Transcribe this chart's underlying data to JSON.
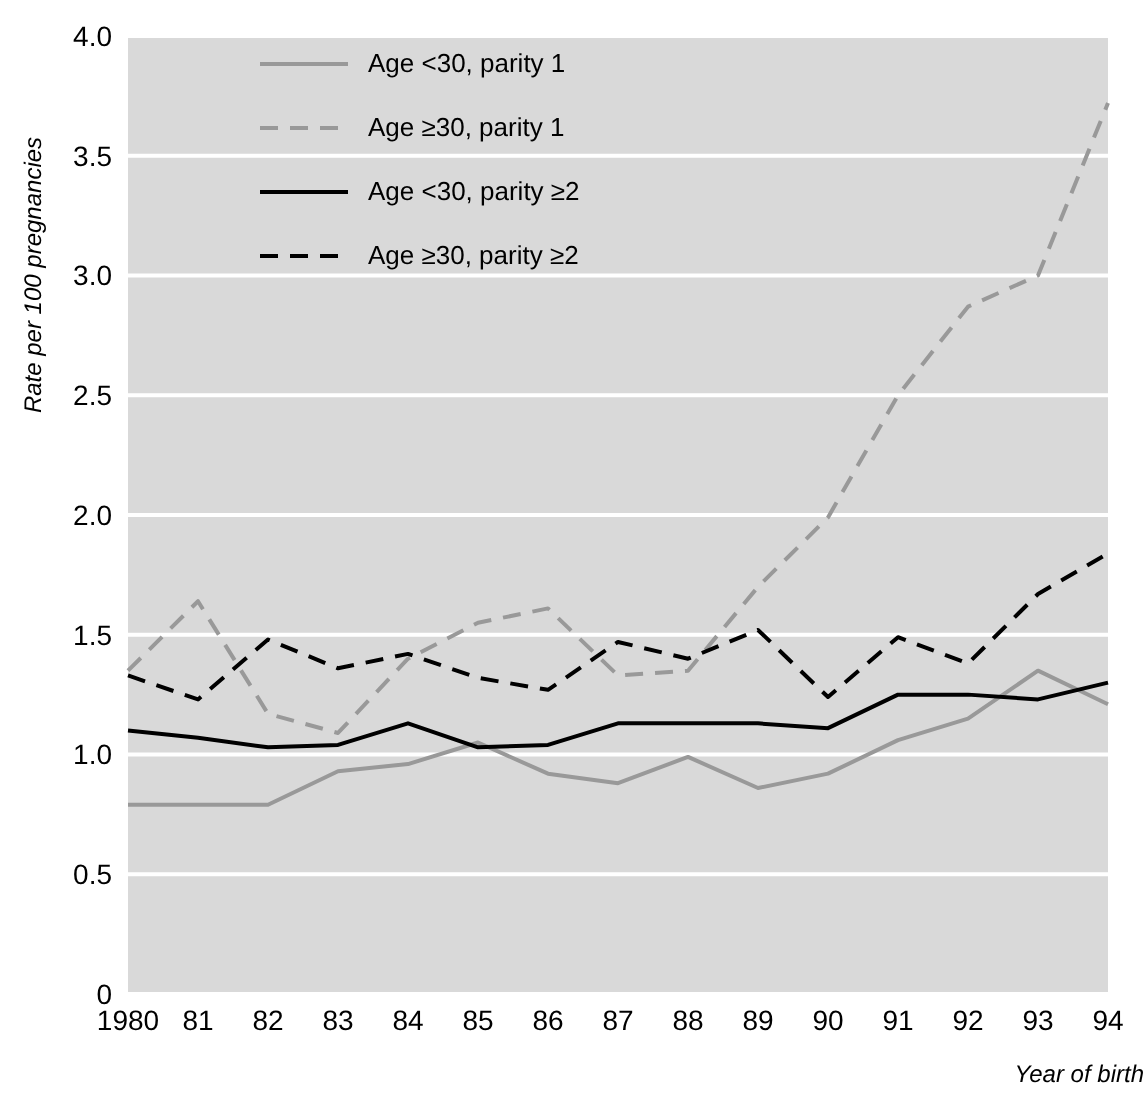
{
  "chart_data": {
    "type": "line",
    "xlabel": "Year of birth",
    "ylabel": "Rate per 100 pregnancies",
    "categories": [
      "1980",
      "81",
      "82",
      "83",
      "84",
      "85",
      "86",
      "87",
      "88",
      "89",
      "90",
      "91",
      "92",
      "93",
      "94"
    ],
    "series": [
      {
        "name": "Age <30, parity 1",
        "color": "#999999",
        "line_style": "solid",
        "values": [
          0.79,
          0.79,
          0.79,
          0.93,
          0.96,
          1.05,
          0.92,
          0.88,
          0.99,
          0.86,
          0.92,
          1.06,
          1.15,
          1.35,
          1.21
        ]
      },
      {
        "name": "Age ≥30, parity 1",
        "color": "#999999",
        "line_style": "dashed",
        "values": [
          1.35,
          1.64,
          1.17,
          1.09,
          1.4,
          1.55,
          1.61,
          1.33,
          1.35,
          1.7,
          1.99,
          2.5,
          2.87,
          3.0,
          3.72
        ]
      },
      {
        "name": "Age <30, parity ≥2",
        "color": "#000000",
        "line_style": "solid",
        "values": [
          1.1,
          1.07,
          1.03,
          1.04,
          1.13,
          1.03,
          1.04,
          1.13,
          1.13,
          1.13,
          1.11,
          1.25,
          1.25,
          1.23,
          1.3
        ]
      },
      {
        "name": "Age ≥30, parity ≥2",
        "color": "#000000",
        "line_style": "dashed",
        "values": [
          1.33,
          1.23,
          1.48,
          1.36,
          1.42,
          1.32,
          1.27,
          1.47,
          1.4,
          1.52,
          1.24,
          1.49,
          1.38,
          1.67,
          1.84
        ]
      }
    ],
    "ylim": [
      0,
      4.0
    ],
    "yticks": [
      0,
      {
        "value": 0.5,
        "label": "0.5"
      },
      {
        "value": 1,
        "label": "1.0"
      },
      {
        "value": 1.5,
        "label": "1.5"
      },
      {
        "value": 2,
        "label": "2.0"
      },
      {
        "value": 2.5,
        "label": "2.5"
      },
      {
        "value": 3,
        "label": "3.0"
      },
      {
        "value": 3.5,
        "label": "3.5"
      },
      {
        "value": 4,
        "label": "4.0"
      }
    ],
    "grid": "y",
    "legend": "top left",
    "marker": "none"
  }
}
